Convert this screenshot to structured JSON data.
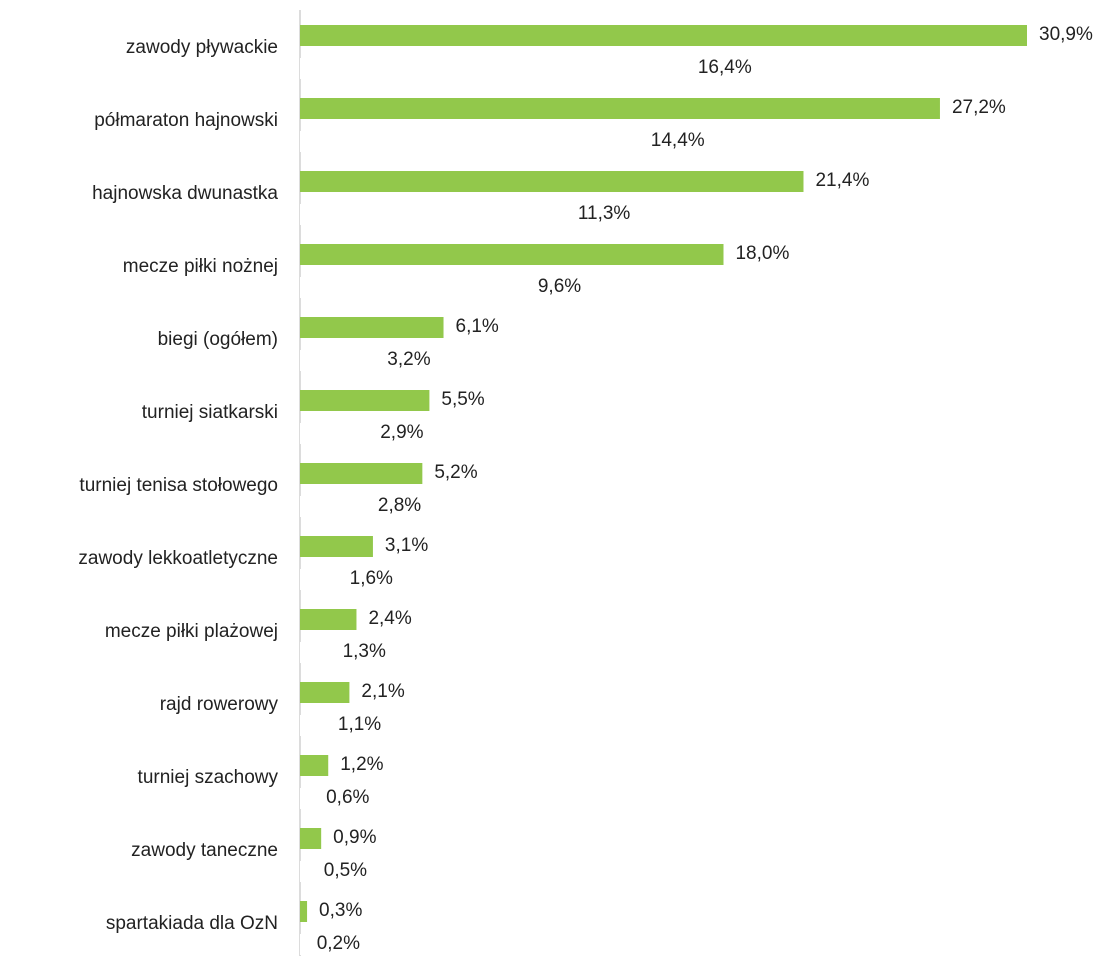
{
  "chart_data": {
    "type": "bar",
    "orientation": "horizontal",
    "categories": [
      "zawody pływackie",
      "półmaraton hajnowski",
      "hajnowska dwunastka",
      "mecze piłki nożnej",
      "biegi (ogółem)",
      "turniej siatkarski",
      "turniej tenisa stołowego",
      "zawody lekkoatletyczne",
      "mecze piłki plażowej",
      "rajd rowerowy",
      "turniej szachowy",
      "zawody taneczne",
      "spartakiada dla OzN"
    ],
    "series": [
      {
        "color": "#92c84b",
        "values": [
          30.9,
          27.2,
          21.4,
          18.0,
          6.1,
          5.5,
          5.2,
          3.1,
          2.4,
          2.1,
          1.2,
          0.9,
          0.3
        ],
        "value_labels": [
          "30,9%",
          "27,2%",
          "21,4%",
          "18,0%",
          "6,1%",
          "5,5%",
          "5,2%",
          "3,1%",
          "2,4%",
          "2,1%",
          "1,2%",
          "0,9%",
          "0,3%"
        ]
      },
      {
        "color": "#ffffff",
        "values": [
          16.4,
          14.4,
          11.3,
          9.6,
          3.2,
          2.9,
          2.8,
          1.6,
          1.3,
          1.1,
          0.6,
          0.5,
          0.2
        ],
        "value_labels": [
          "16,4%",
          "14,4%",
          "11,3%",
          "9,6%",
          "3,2%",
          "2,9%",
          "2,8%",
          "1,6%",
          "1,3%",
          "1,1%",
          "0,6%",
          "0,5%",
          "0,2%"
        ]
      }
    ]
  }
}
